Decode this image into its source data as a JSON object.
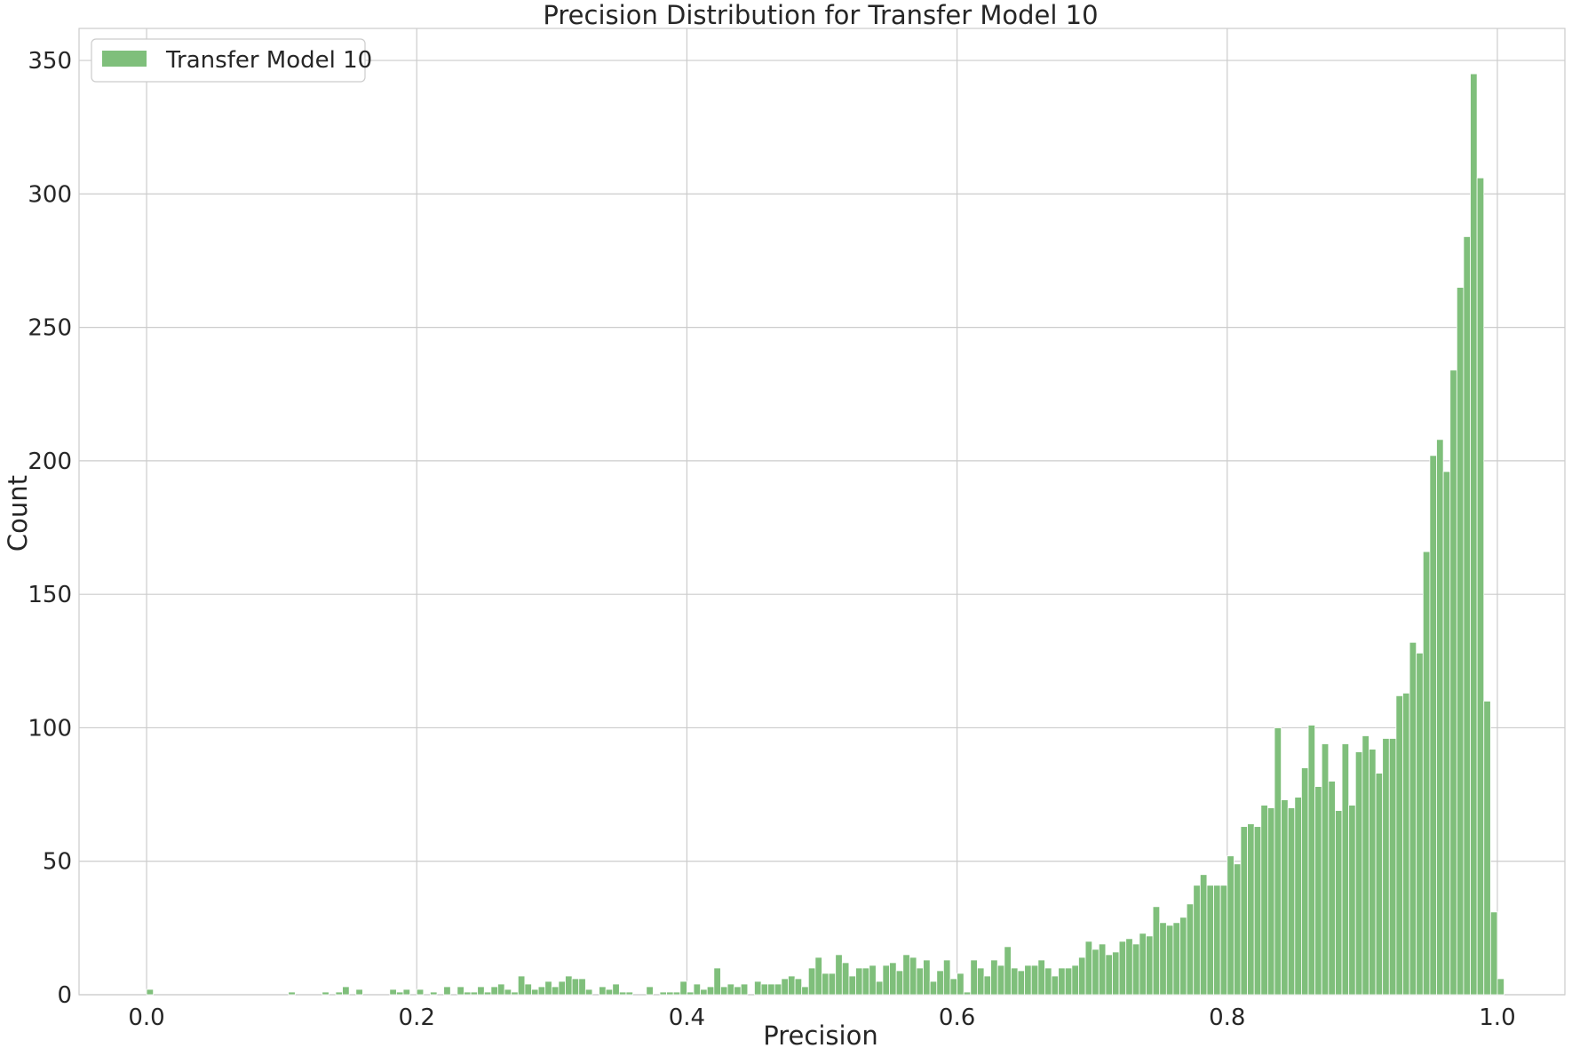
{
  "chart_data": {
    "type": "bar",
    "title": "Precision Distribution for Transfer Model 10",
    "xlabel": "Precision",
    "ylabel": "Count",
    "xlim": [
      -0.05,
      1.05
    ],
    "ylim": [
      0,
      362
    ],
    "xticks": [
      0.0,
      0.2,
      0.4,
      0.6,
      0.8,
      1.0
    ],
    "xtick_labels": [
      "0.0",
      "0.2",
      "0.4",
      "0.6",
      "0.8",
      "1.0"
    ],
    "yticks": [
      0,
      50,
      100,
      150,
      200,
      250,
      300,
      350
    ],
    "ytick_labels": [
      "0",
      "50",
      "100",
      "150",
      "200",
      "250",
      "300",
      "350"
    ],
    "grid": true,
    "legend": {
      "position": "top-left",
      "entries": [
        "Transfer Model 10"
      ]
    },
    "colors": {
      "bar": "#7fbf7b",
      "grid": "#cccccc",
      "text": "#262626"
    },
    "bin_start": 0.0,
    "bin_width": 0.005,
    "series": [
      {
        "name": "Transfer Model 10",
        "counts": [
          2,
          0,
          0,
          0,
          0,
          0,
          0,
          0,
          0,
          0,
          0,
          0,
          0,
          0,
          0,
          0,
          0,
          0,
          0,
          0,
          0,
          1,
          0,
          0,
          0,
          0,
          1,
          0,
          1,
          3,
          0,
          2,
          0,
          0,
          0,
          0,
          2,
          1,
          2,
          0,
          2,
          0,
          1,
          0,
          3,
          0,
          3,
          1,
          1,
          3,
          1,
          3,
          4,
          2,
          1,
          7,
          4,
          2,
          3,
          5,
          3,
          5,
          7,
          6,
          6,
          2,
          0,
          3,
          2,
          4,
          1,
          1,
          0,
          0,
          3,
          0,
          1,
          1,
          1,
          5,
          1,
          4,
          2,
          3,
          10,
          3,
          4,
          3,
          4,
          0,
          5,
          4,
          4,
          4,
          6,
          7,
          6,
          3,
          10,
          14,
          8,
          8,
          15,
          12,
          7,
          10,
          10,
          11,
          5,
          11,
          12,
          9,
          15,
          14,
          10,
          13,
          5,
          9,
          13,
          6,
          8,
          1,
          13,
          10,
          7,
          13,
          11,
          18,
          10,
          9,
          11,
          11,
          13,
          10,
          7,
          10,
          10,
          11,
          14,
          20,
          17,
          19,
          15,
          16,
          20,
          21,
          19,
          23,
          22,
          33,
          27,
          26,
          27,
          29,
          34,
          41,
          45,
          41,
          41,
          41,
          52,
          49,
          63,
          64,
          63,
          71,
          70,
          100,
          73,
          70,
          74,
          85,
          101,
          78,
          94,
          80,
          69,
          94,
          71,
          91,
          97,
          92,
          83,
          96,
          96,
          112,
          113,
          132,
          128,
          166,
          202,
          208,
          196,
          234,
          265,
          284,
          345,
          306,
          110,
          31,
          6
        ]
      }
    ]
  }
}
